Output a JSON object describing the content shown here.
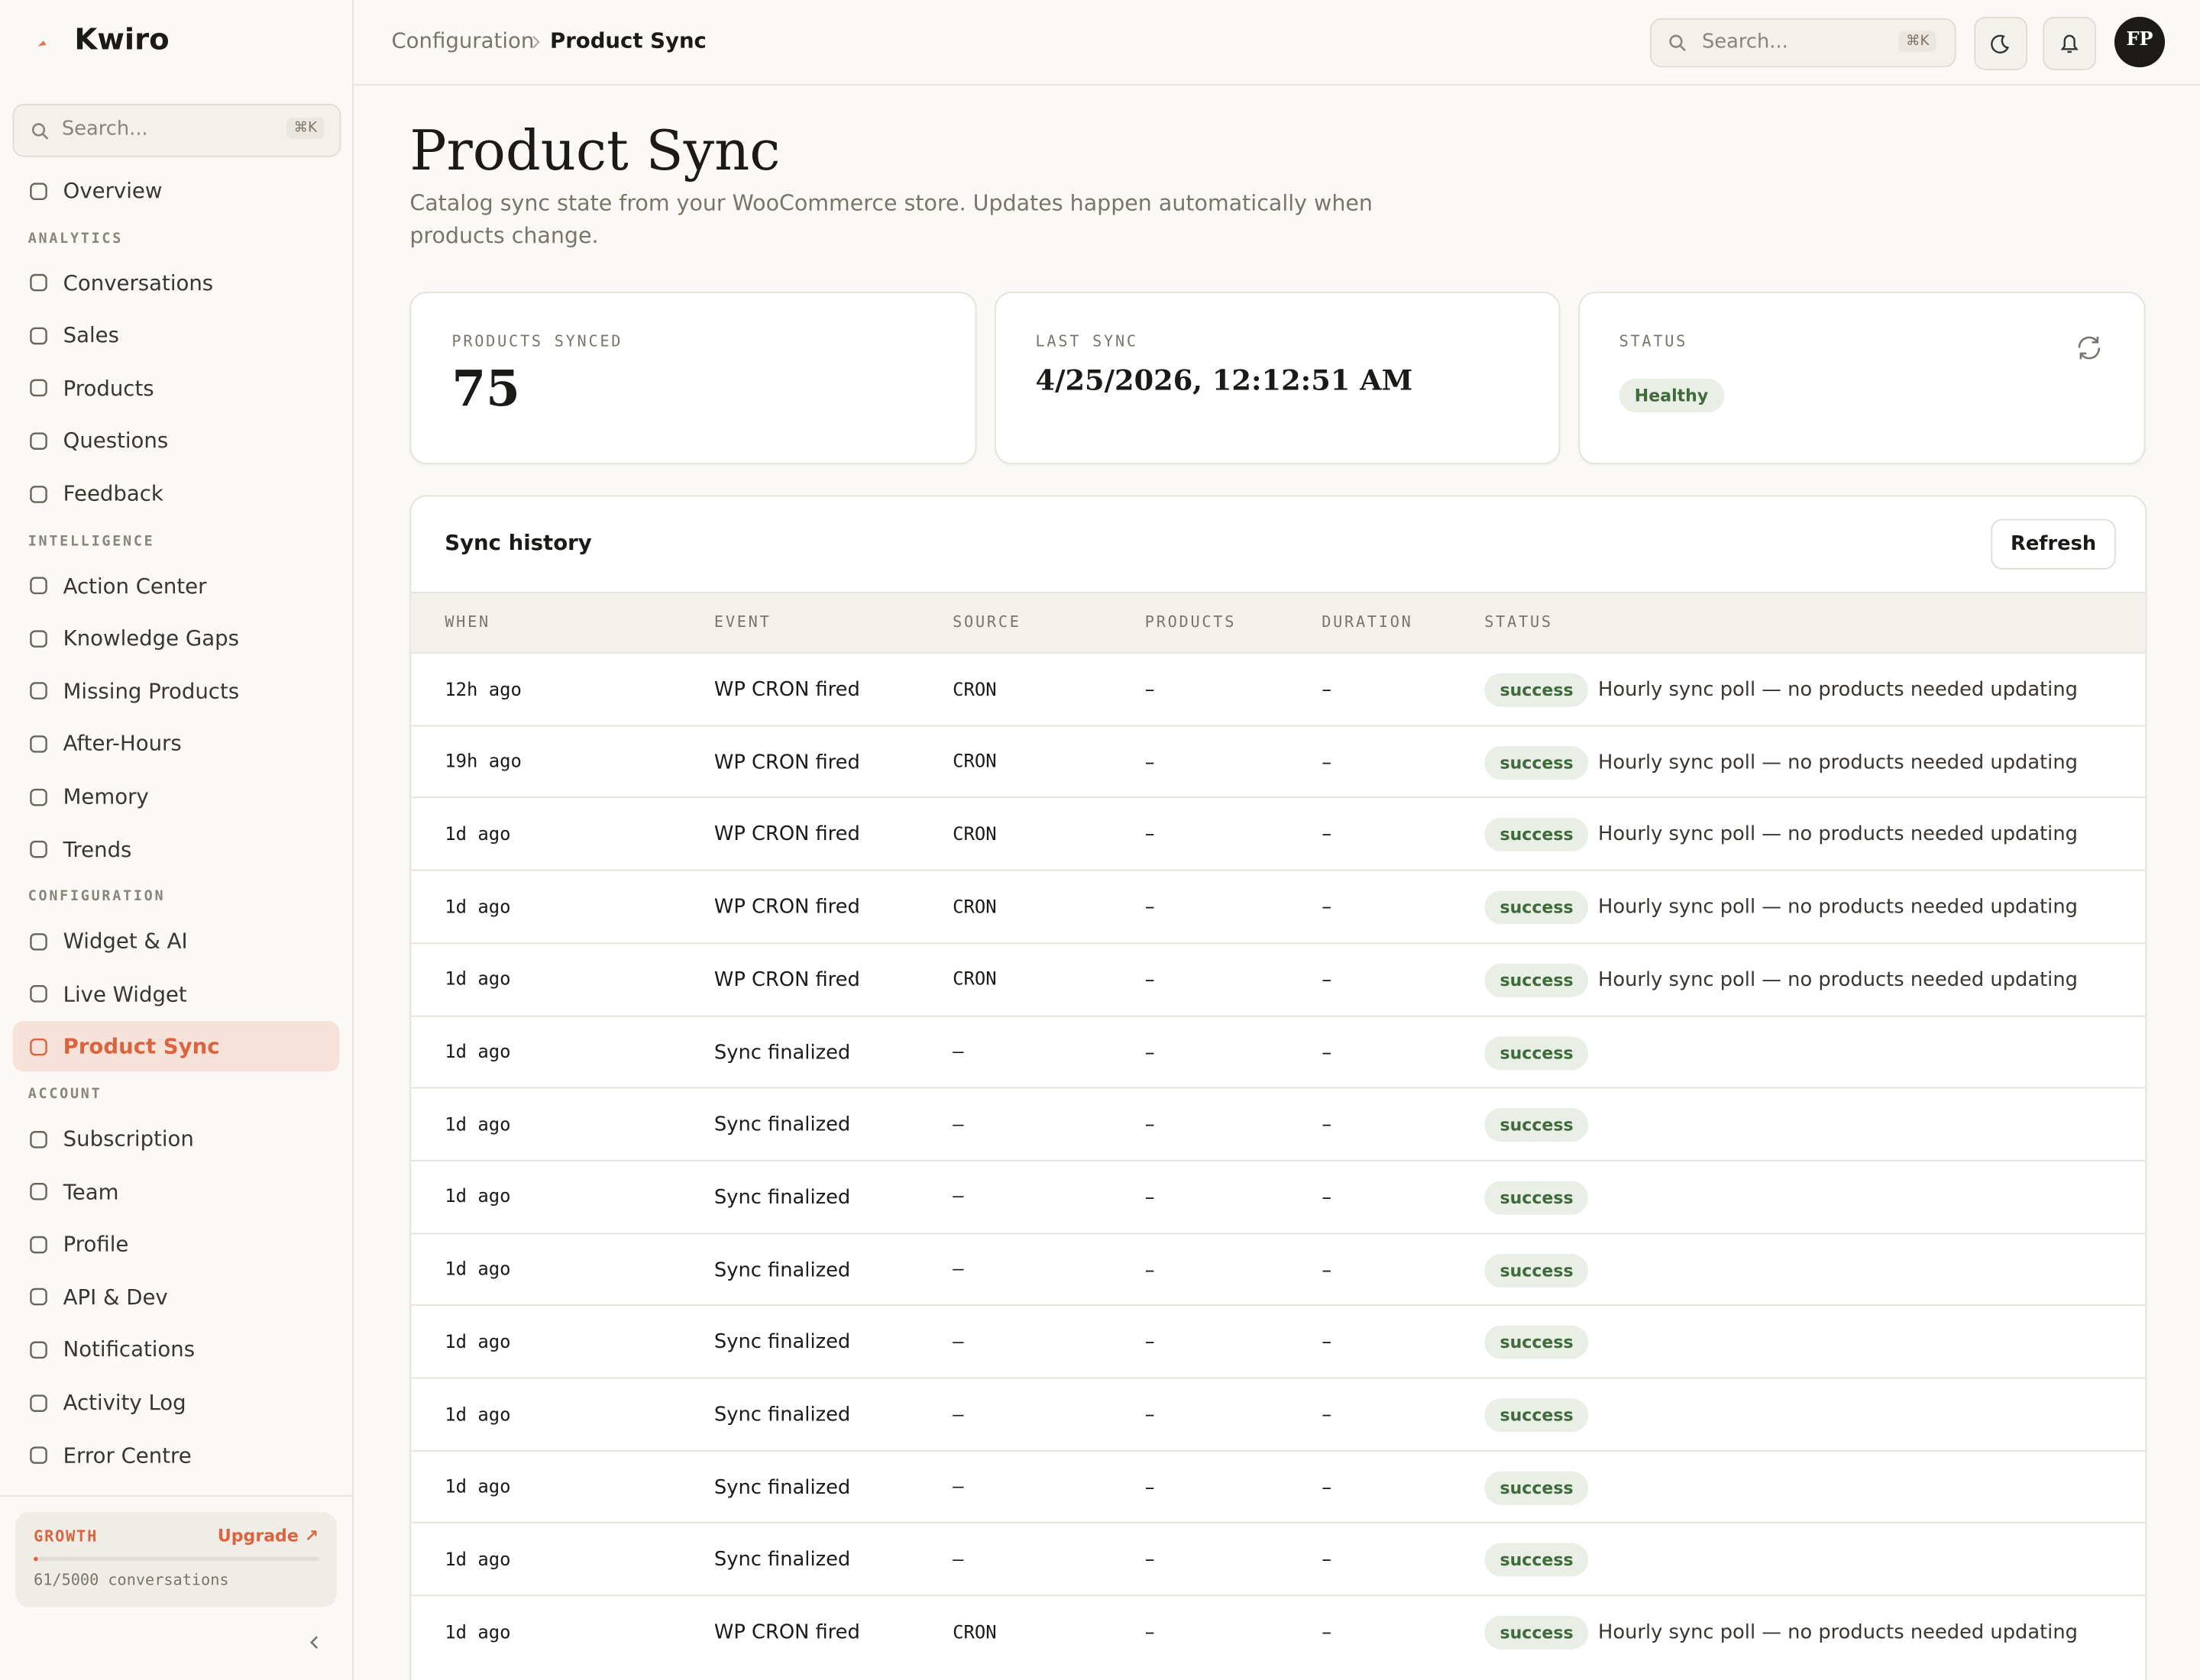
{
  "brand": {
    "name": "Kwiro"
  },
  "sidebar": {
    "search": "Search...",
    "shortcut": "⌘K",
    "overview": "Overview",
    "sections": [
      {
        "title": "ANALYTICS",
        "items": [
          "Conversations",
          "Sales",
          "Products",
          "Questions",
          "Feedback"
        ]
      },
      {
        "title": "INTELLIGENCE",
        "items": [
          "Action Center",
          "Knowledge Gaps",
          "Missing Products",
          "After-Hours",
          "Memory",
          "Trends"
        ]
      },
      {
        "title": "CONFIGURATION",
        "items": [
          "Widget & AI",
          "Live Widget",
          "Product Sync"
        ]
      },
      {
        "title": "ACCOUNT",
        "items": [
          "Subscription",
          "Team",
          "Profile",
          "API & Dev",
          "Notifications",
          "Activity Log",
          "Error Centre"
        ]
      }
    ],
    "plan": {
      "name": "GROWTH",
      "upgrade": "Upgrade ↗",
      "usage": "61/5000 conversations"
    }
  },
  "header": {
    "breadcrumb": [
      "Configuration",
      "Product Sync"
    ],
    "search": "Search...",
    "shortcut": "⌘K",
    "avatar": "FP"
  },
  "page": {
    "title": "Product Sync",
    "description": "Catalog sync state from your WooCommerce store. Updates happen automatically when products change."
  },
  "stats": [
    {
      "label": "PRODUCTS SYNCED",
      "value": "75"
    },
    {
      "label": "LAST SYNC",
      "value": "4/25/2026, 12:12:51 AM"
    },
    {
      "label": "STATUS",
      "value": "Healthy"
    }
  ],
  "history": {
    "title": "Sync history",
    "refresh": "Refresh",
    "columns": [
      "WHEN",
      "EVENT",
      "SOURCE",
      "PRODUCTS",
      "DURATION",
      "STATUS"
    ],
    "rows": [
      [
        "12h ago",
        "WP CRON fired",
        "CRON",
        "–",
        "–",
        "success",
        "Hourly sync poll — no products needed updating"
      ],
      [
        "19h ago",
        "WP CRON fired",
        "CRON",
        "–",
        "–",
        "success",
        "Hourly sync poll — no products needed updating"
      ],
      [
        "1d ago",
        "WP CRON fired",
        "CRON",
        "–",
        "–",
        "success",
        "Hourly sync poll — no products needed updating"
      ],
      [
        "1d ago",
        "WP CRON fired",
        "CRON",
        "–",
        "–",
        "success",
        "Hourly sync poll — no products needed updating"
      ],
      [
        "1d ago",
        "WP CRON fired",
        "CRON",
        "–",
        "–",
        "success",
        "Hourly sync poll — no products needed updating"
      ],
      [
        "1d ago",
        "Sync finalized",
        "–",
        "–",
        "–",
        "success"
      ],
      [
        "1d ago",
        "Sync finalized",
        "–",
        "–",
        "–",
        "success"
      ],
      [
        "1d ago",
        "Sync finalized",
        "–",
        "–",
        "–",
        "success"
      ],
      [
        "1d ago",
        "Sync finalized",
        "–",
        "–",
        "–",
        "success"
      ],
      [
        "1d ago",
        "Sync finalized",
        "–",
        "–",
        "–",
        "success"
      ],
      [
        "1d ago",
        "Sync finalized",
        "–",
        "–",
        "–",
        "success"
      ],
      [
        "1d ago",
        "Sync finalized",
        "–",
        "–",
        "–",
        "success"
      ],
      [
        "1d ago",
        "Sync finalized",
        "–",
        "–",
        "–",
        "success"
      ],
      [
        "1d ago",
        "WP CRON fired",
        "CRON",
        "–",
        "–",
        "success",
        "Hourly sync poll — no products needed updating"
      ]
    ]
  }
}
